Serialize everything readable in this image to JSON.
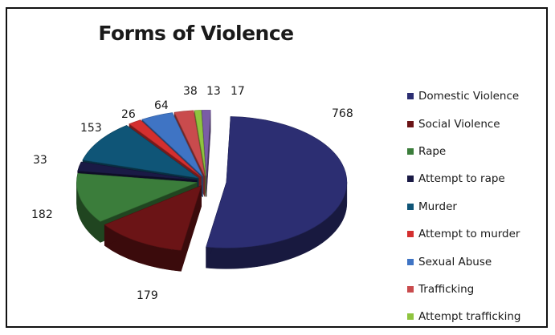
{
  "chart_data": {
    "type": "pie",
    "title": "Forms of Violence",
    "legend_position": "right",
    "three_d": true,
    "exploded": true,
    "series": [
      {
        "name": "Domestic Violence",
        "value": 768,
        "color": "#2c2e72"
      },
      {
        "name": "Social Violence",
        "value": 179,
        "color": "#6b1416"
      },
      {
        "name": "Rape",
        "value": 182,
        "color": "#3b7d3b"
      },
      {
        "name": "Attempt to rape",
        "value": 33,
        "color": "#1a1a45"
      },
      {
        "name": "Murder",
        "value": 153,
        "color": "#0f5577"
      },
      {
        "name": "Attempt to murder",
        "value": 26,
        "color": "#d42f2f"
      },
      {
        "name": "Sexual Abuse",
        "value": 64,
        "color": "#3f74c4"
      },
      {
        "name": "Trafficking",
        "value": 38,
        "color": "#c94b4d"
      },
      {
        "name": "Attempt trafficking",
        "value": 13,
        "color": "#8fc43f"
      },
      {
        "name": "",
        "value": 17,
        "color": "#7a5ca6"
      }
    ]
  }
}
